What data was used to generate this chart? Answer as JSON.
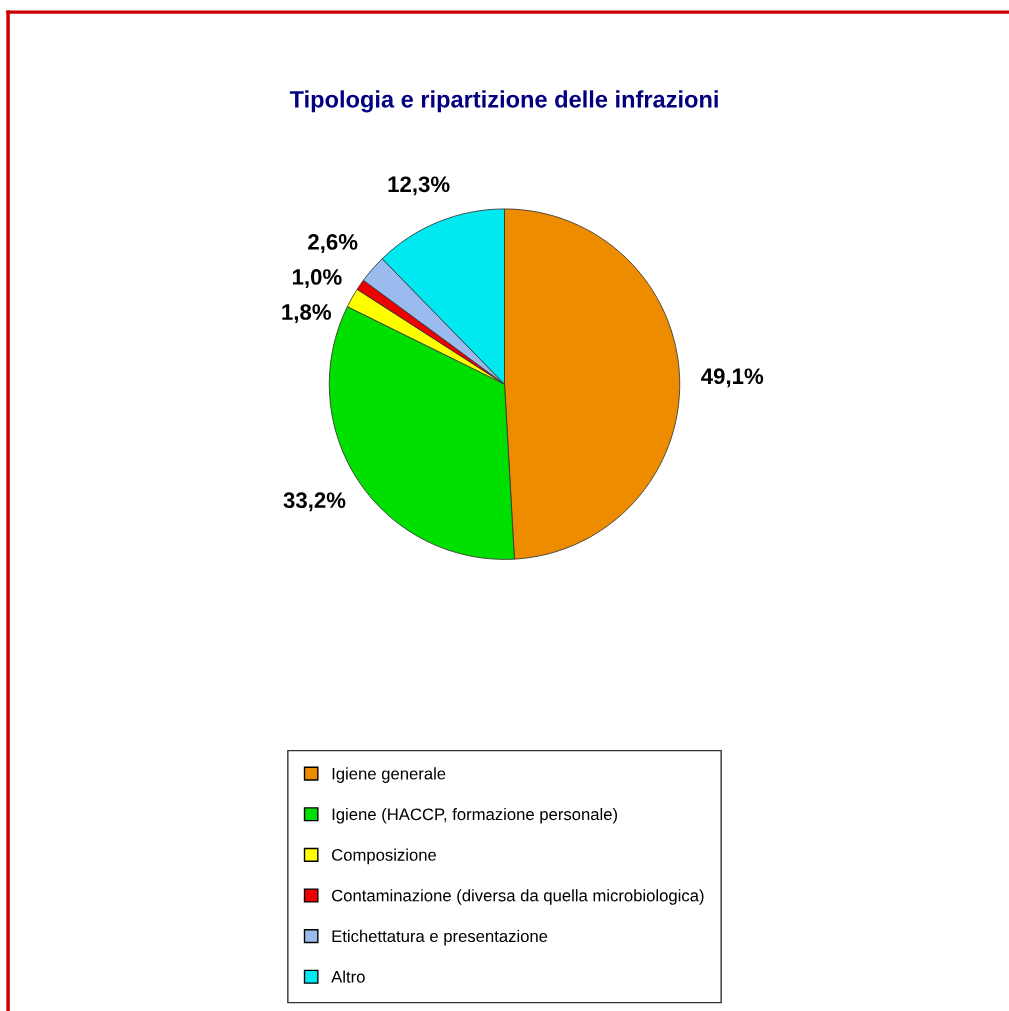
{
  "chart_data": {
    "type": "pie",
    "title": "Tipologia e ripartizione delle infrazioni",
    "categories": [
      "Igiene generale",
      "Igiene (HACCP, formazione personale)",
      "Composizione",
      "Contaminazione (diversa da quella microbiologica)",
      "Etichettatura e presentazione",
      "Altro"
    ],
    "values": [
      49.1,
      33.2,
      1.8,
      1.0,
      2.6,
      12.3
    ],
    "colors": [
      "#ee8c00",
      "#00e000",
      "#ffff00",
      "#ee0000",
      "#99bbee",
      "#00e8f0"
    ],
    "value_labels": [
      "49,1%",
      "33,2%",
      "1,8%",
      "1,0%",
      "2,6%",
      "12,3%"
    ],
    "legend": "bottom"
  }
}
